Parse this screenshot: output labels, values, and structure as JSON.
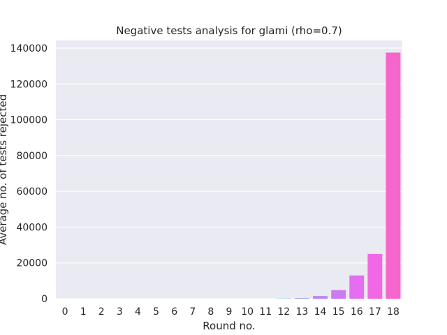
{
  "chart_data": {
    "type": "bar",
    "title": "Negative tests analysis for glami (rho=0.7)",
    "xlabel": "Round no.",
    "ylabel": "Average no. of tests rejected",
    "categories": [
      "0",
      "1",
      "2",
      "3",
      "4",
      "5",
      "6",
      "7",
      "8",
      "9",
      "10",
      "11",
      "12",
      "13",
      "14",
      "15",
      "16",
      "17",
      "18"
    ],
    "values": [
      0,
      0,
      0,
      0,
      0,
      0,
      0,
      0,
      0,
      0,
      0,
      0,
      100,
      300,
      1500,
      4800,
      13000,
      25000,
      137500
    ],
    "ylim": [
      0,
      140000
    ],
    "yticks": [
      0,
      20000,
      40000,
      60000,
      80000,
      100000,
      120000,
      140000
    ],
    "ytick_labels": [
      "0",
      "20000",
      "40000",
      "60000",
      "80000",
      "100000",
      "120000",
      "140000"
    ],
    "grid": true,
    "colors": {
      "background": "#eaeaf2",
      "grid": "#ffffff",
      "bars": [
        "#f77189",
        "#f7754f",
        "#dd8a31",
        "#c39732",
        "#ae9d31",
        "#97a431",
        "#77ab31",
        "#33b07a",
        "#35ad9c",
        "#36ada4",
        "#37abb4",
        "#38a9c5",
        "#3ba3ec",
        "#8f8ff4",
        "#bb83f4",
        "#cc7af4",
        "#e56ef0",
        "#f168e4",
        "#f565cc"
      ]
    }
  }
}
